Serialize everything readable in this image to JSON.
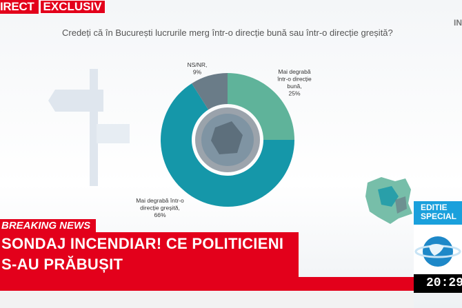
{
  "top_bar": {
    "direct_label": "IRECT",
    "exclusive_label": "EXCLUSIV"
  },
  "channel_mark": "IN",
  "chart_data": {
    "type": "pie",
    "title": "Credeți că în București lucrurile merg într-o direcție bună sau într-o direcție greșită?",
    "slices": [
      {
        "label_lines": [
          "Mai degrabă",
          "într-o direcție",
          "bună,",
          "25%"
        ],
        "value": 25,
        "color": "#5fb39a"
      },
      {
        "label_lines": [
          "Mai degrabă într-o",
          "direcție greșită,",
          "66%"
        ],
        "value": 66,
        "color": "#1597a9"
      },
      {
        "label_lines": [
          "NS/NR,",
          "9%"
        ],
        "value": 9,
        "color": "#6a7c88"
      }
    ],
    "legend": "none"
  },
  "overlay": {
    "edition_line1": "EDITIE",
    "edition_line2": "SPECIAL",
    "breaking_label": "BREAKING NEWS",
    "headline_line1": "SONDAJ INCENDIAR! CE POLITICIENI",
    "headline_line2": "S-AU PRĂBUȘIT",
    "clock": "20:29"
  }
}
